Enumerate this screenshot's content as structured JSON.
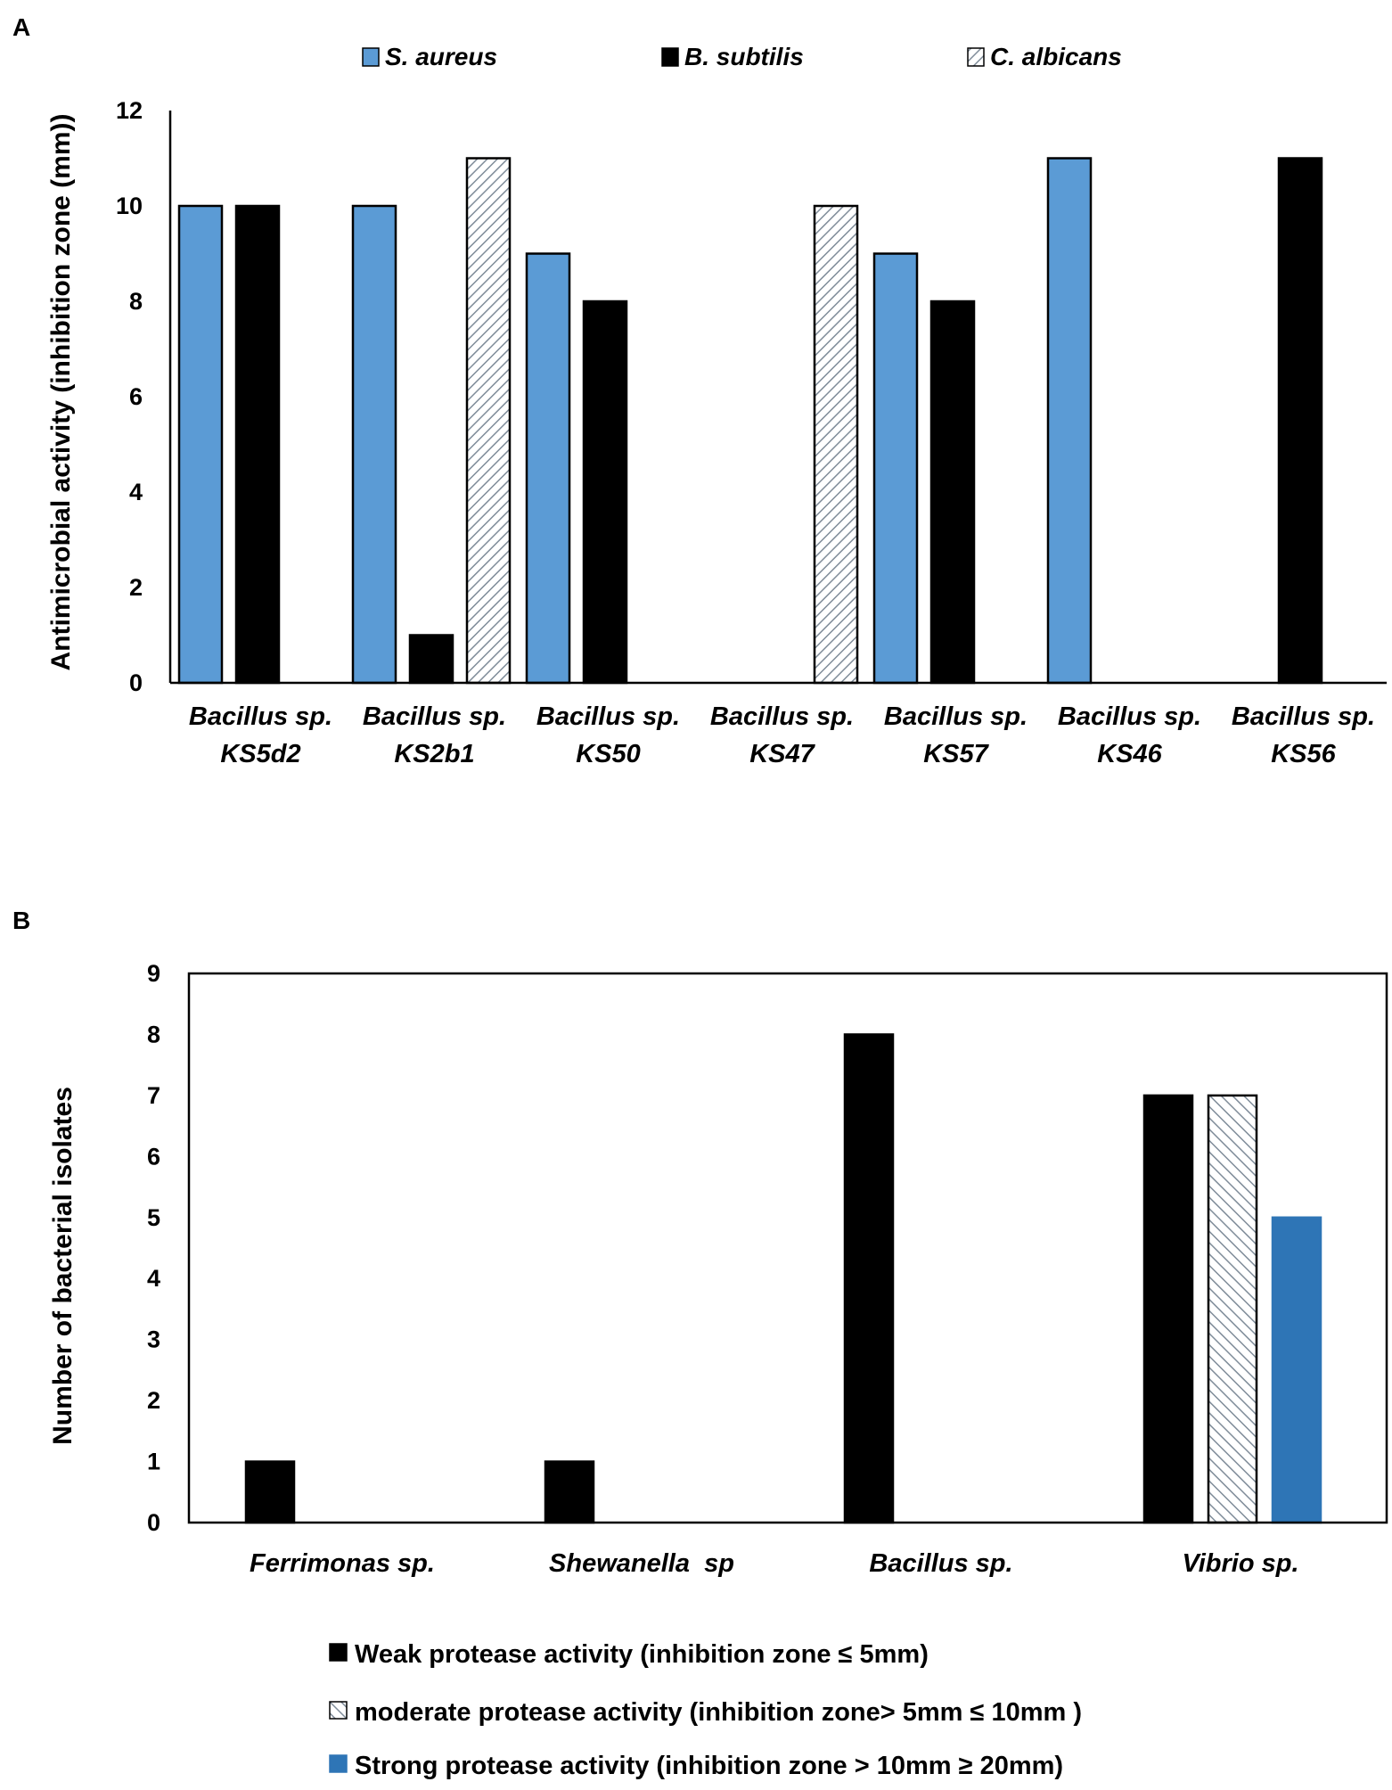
{
  "colors": {
    "s_aureus": "#5b9bd5",
    "b_subtilis": "#000000",
    "c_albicans_hatch": "#7f8c99",
    "weak": "#000000",
    "moderate_hatch": "#7f8c99",
    "strong": "#2e75b6"
  },
  "chart_data": [
    {
      "panel": "A",
      "type": "bar",
      "title": "",
      "xlabel": "",
      "ylabel": "Antimicrobial activity (inhibition zone (mm))",
      "ylim": [
        0,
        12
      ],
      "yticks": [
        0,
        2,
        4,
        6,
        8,
        10,
        12
      ],
      "legend_position": "top",
      "categories": [
        [
          "Bacillus sp.",
          "KS5d2"
        ],
        [
          "Bacillus sp.",
          "KS2b1"
        ],
        [
          "Bacillus sp.",
          "KS50"
        ],
        [
          "Bacillus sp.",
          "KS47"
        ],
        [
          "Bacillus sp.",
          "KS57"
        ],
        [
          "Bacillus sp.",
          "KS46"
        ],
        [
          "Bacillus sp.",
          "KS56"
        ]
      ],
      "series": [
        {
          "name": "S. aureus",
          "style": "solid-blue",
          "values": [
            10,
            10,
            9,
            0,
            9,
            11,
            0
          ]
        },
        {
          "name": "B. subtilis",
          "style": "solid-black",
          "values": [
            10,
            1,
            8,
            0,
            8,
            0,
            11
          ]
        },
        {
          "name": "C. albicans",
          "style": "hatched",
          "values": [
            0,
            11,
            0,
            10,
            0,
            0,
            0
          ]
        }
      ]
    },
    {
      "panel": "B",
      "type": "bar",
      "title": "",
      "xlabel": "",
      "ylabel": "Number of bacterial isolates",
      "ylim": [
        0,
        9
      ],
      "yticks": [
        0,
        1,
        2,
        3,
        4,
        5,
        6,
        7,
        8,
        9
      ],
      "legend_position": "bottom",
      "categories": [
        "Ferrimonas sp.",
        "Shewanella  sp",
        "Bacillus sp.",
        "Vibrio sp."
      ],
      "series": [
        {
          "name": "Weak protease activity (inhibition zone ≤ 5mm)",
          "style": "solid-black",
          "values": [
            1,
            1,
            8,
            7
          ]
        },
        {
          "name": "moderate protease activity (inhibition zone> 5mm ≤ 10mm )",
          "style": "hatched",
          "values": [
            0,
            0,
            0,
            7
          ]
        },
        {
          "name": "Strong protease activity (inhibition zone > 10mm  ≥ 20mm)",
          "style": "solid-darkblue",
          "values": [
            0,
            0,
            0,
            5
          ]
        }
      ]
    }
  ]
}
